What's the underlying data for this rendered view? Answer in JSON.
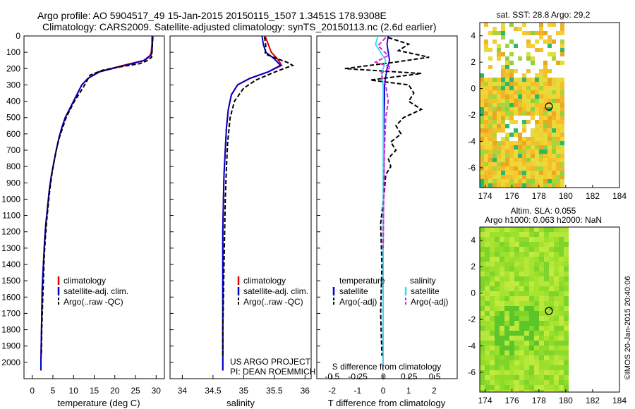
{
  "header": {
    "line1": "Argo profile: AO 5904517_49 15-Jan-2015 20150115_1507 1.3451S 178.9308E",
    "line2": "Climatology: CARS2009. Satellite-adjusted climatology: synTS_20150113.nc (2.6d earlier)"
  },
  "depth_ticks": [
    "0",
    "100",
    "200",
    "300",
    "400",
    "500",
    "600",
    "700",
    "800",
    "900",
    "1000",
    "1100",
    "1200",
    "1300",
    "1400",
    "1500",
    "1600",
    "1700",
    "1800",
    "1900",
    "2000"
  ],
  "colors": {
    "climatology": "#dd0000",
    "satellite": "#0000cc",
    "argo": "#000000",
    "salinity_satellite": "#33ddee",
    "salinity_argo": "#dd22dd",
    "sst_bg": "#ffffff"
  },
  "panels": {
    "temperature": {
      "xlabel": "temperature (deg C)",
      "xticks": [
        "0",
        "5",
        "10",
        "15",
        "20",
        "25",
        "30"
      ],
      "legend": [
        "climatology",
        "satellite-adj. clim.",
        "Argo(..raw -QC)"
      ]
    },
    "salinity": {
      "xlabel": "salinity",
      "xticks": [
        "34",
        "34.5",
        "35",
        "35.5",
        "36"
      ],
      "legend": [
        "climatology",
        "satellite-adj. clim.",
        "Argo(..raw -QC)"
      ],
      "credit1": "US ARGO PROJECT",
      "credit2": "PI: DEAN ROEMMICH"
    },
    "difference": {
      "top_xlabel": "S difference from climatology",
      "top_ticks": [
        "-0.5",
        "-0.25",
        "0",
        "0.25",
        "0.5"
      ],
      "xlabel": "T difference from climatology",
      "xticks": [
        "-2",
        "-1",
        "0",
        "1",
        "2"
      ],
      "legend_temperature_title": "temperature",
      "legend_salinity_title": "salinity",
      "legend_temperature": [
        "satellite",
        "Argo(-adj)"
      ],
      "legend_salinity": [
        "satellite",
        "Argo(-adj)"
      ]
    },
    "sst_map": {
      "title": "sat. SST: 28.8 Argo: 29.2",
      "yticks": [
        "4",
        "2",
        "0",
        "-2",
        "-4",
        "-6"
      ],
      "xticks": [
        "174",
        "176",
        "178",
        "180",
        "182",
        "184"
      ]
    },
    "sla_map": {
      "title1": "Altim. SLA: 0.055",
      "title2": "Argo h1000: 0.063 h2000: NaN",
      "yticks": [
        "4",
        "2",
        "0",
        "-2",
        "-4",
        "-6"
      ],
      "xticks": [
        "174",
        "176",
        "178",
        "180",
        "182",
        "184"
      ]
    }
  },
  "side_stamp": "©IMOS 20-Jan-2015 20:40:06",
  "chart_data": [
    {
      "type": "line",
      "title": "",
      "xlabel": "temperature (deg C)",
      "ylabel": "",
      "xlim": [
        -2,
        32
      ],
      "ylim": [
        2100,
        0
      ],
      "series": [
        {
          "name": "climatology",
          "x": [
            29.0,
            29.0,
            28.8,
            28.5,
            27.0,
            22.0,
            16.0,
            13.5,
            12.0,
            11.0,
            10.0,
            9.0,
            8.0,
            7.2,
            6.5,
            5.8,
            5.2,
            4.6,
            4.1,
            3.7,
            3.3,
            3.0,
            2.8,
            2.6,
            2.4,
            2.3,
            2.2,
            2.1,
            2.1
          ],
          "y": [
            0,
            50,
            100,
            120,
            150,
            180,
            220,
            260,
            300,
            350,
            400,
            450,
            500,
            560,
            620,
            700,
            780,
            860,
            950,
            1050,
            1150,
            1250,
            1350,
            1450,
            1550,
            1700,
            1850,
            2000,
            2050
          ]
        },
        {
          "name": "satellite-adj. clim.",
          "x": [
            29.2,
            29.1,
            29.0,
            28.7,
            27.2,
            22.5,
            16.3,
            13.5,
            12.0,
            11.0,
            10.0,
            9.0,
            8.0,
            7.2,
            6.5,
            5.8,
            5.2,
            4.6,
            4.1,
            3.7,
            3.3,
            3.0,
            2.8,
            2.6,
            2.4,
            2.3,
            2.2,
            2.1,
            2.1
          ],
          "y": [
            0,
            50,
            100,
            120,
            150,
            180,
            220,
            260,
            300,
            350,
            400,
            450,
            500,
            560,
            620,
            700,
            780,
            860,
            950,
            1050,
            1150,
            1250,
            1350,
            1450,
            1550,
            1700,
            1850,
            2000,
            2050
          ]
        },
        {
          "name": "Argo(..raw -QC)",
          "x": [
            29.2,
            29.1,
            29.0,
            28.9,
            28.0,
            26.0,
            21.0,
            17.0,
            14.0,
            12.7,
            11.5,
            10.2,
            9.2,
            8.2,
            7.4,
            6.6,
            6.0,
            5.4,
            4.8,
            4.3,
            3.9,
            3.5,
            3.2,
            2.9,
            2.7,
            2.5,
            2.3,
            2.2
          ],
          "y": [
            5,
            50,
            100,
            130,
            150,
            170,
            190,
            210,
            240,
            300,
            350,
            400,
            450,
            500,
            560,
            620,
            680,
            750,
            840,
            930,
            1030,
            1130,
            1230,
            1350,
            1500,
            1650,
            1800,
            1960
          ]
        }
      ]
    },
    {
      "type": "line",
      "title": "",
      "xlabel": "salinity",
      "ylabel": "",
      "xlim": [
        33.8,
        36.1
      ],
      "ylim": [
        2100,
        0
      ],
      "series": [
        {
          "name": "climatology",
          "x": [
            35.35,
            35.4,
            35.45,
            35.55,
            35.62,
            35.4,
            35.1,
            34.9,
            34.8,
            34.75,
            34.72,
            34.7,
            34.68,
            34.67,
            34.66,
            34.66,
            34.66,
            34.66,
            34.66,
            34.66
          ],
          "y": [
            0,
            50,
            100,
            140,
            180,
            220,
            260,
            300,
            360,
            450,
            560,
            700,
            850,
            1000,
            1200,
            1400,
            1600,
            1800,
            2000,
            2050
          ]
        },
        {
          "name": "satellite-adj. clim.",
          "x": [
            35.3,
            35.32,
            35.36,
            35.5,
            35.6,
            35.4,
            35.1,
            34.9,
            34.8,
            34.75,
            34.72,
            34.7,
            34.68,
            34.67,
            34.66,
            34.66,
            34.66,
            34.66,
            34.66,
            34.66
          ],
          "y": [
            0,
            50,
            100,
            140,
            180,
            220,
            260,
            300,
            360,
            450,
            560,
            700,
            850,
            1000,
            1200,
            1400,
            1600,
            1800,
            2000,
            2050
          ]
        },
        {
          "name": "Argo(..raw -QC)",
          "x": [
            35.34,
            35.36,
            35.35,
            35.55,
            35.7,
            35.8,
            35.65,
            35.45,
            35.2,
            35.0,
            34.85,
            34.78,
            34.74,
            34.72,
            34.7,
            34.69,
            34.68,
            34.67,
            34.66,
            34.66
          ],
          "y": [
            5,
            60,
            110,
            140,
            160,
            180,
            200,
            230,
            270,
            320,
            400,
            500,
            650,
            800,
            1000,
            1200,
            1400,
            1600,
            1800,
            1960
          ]
        }
      ]
    },
    {
      "type": "line",
      "title": "",
      "xlabel": "T difference from climatology",
      "ylabel": "",
      "xlim": [
        -2.6,
        2.9
      ],
      "ylim": [
        2100,
        0
      ],
      "series": [
        {
          "name": "temperature satellite",
          "x": [
            0.2,
            0.15,
            0.2,
            0.25,
            0.15,
            0.1,
            0.05,
            0.05,
            0.03,
            0.02,
            0.02,
            0.01,
            0.0,
            0.0,
            0.0,
            0.0
          ],
          "y": [
            0,
            50,
            100,
            150,
            200,
            250,
            300,
            400,
            500,
            600,
            800,
            1000,
            1300,
            1600,
            1900,
            2050
          ]
        },
        {
          "name": "temperature Argo(-adj)",
          "x": [
            0.2,
            1.0,
            0.6,
            1.8,
            0.5,
            -1.5,
            1.5,
            -0.5,
            1.0,
            1.2,
            1.0,
            1.5,
            0.8,
            0.5,
            0.7,
            0.3,
            0.5,
            0.2,
            0.3,
            0.1,
            0.05,
            -0.1,
            -0.05,
            -0.1,
            -0.05
          ],
          "y": [
            10,
            50,
            90,
            130,
            160,
            200,
            230,
            270,
            300,
            350,
            400,
            450,
            500,
            550,
            600,
            650,
            700,
            750,
            800,
            850,
            950,
            1150,
            1400,
            1700,
            1960
          ]
        },
        {
          "name": "salinity satellite",
          "x": [
            -0.2,
            -0.3,
            -0.1,
            0.1,
            0.0,
            -0.05,
            0.0,
            0.0,
            0.0,
            0.0,
            0.0,
            0.0
          ],
          "y": [
            0,
            50,
            100,
            150,
            200,
            250,
            300,
            400,
            600,
            900,
            1400,
            2050
          ]
        },
        {
          "name": "salinity Argo(-adj)",
          "x": [
            0.1,
            -0.2,
            0.2,
            -0.3,
            0.3,
            -0.1,
            0.1,
            0.2,
            0.1,
            0.05,
            0.02,
            0.0
          ],
          "y": [
            10,
            60,
            120,
            160,
            190,
            230,
            300,
            400,
            500,
            700,
            1000,
            1300
          ]
        }
      ]
    }
  ]
}
